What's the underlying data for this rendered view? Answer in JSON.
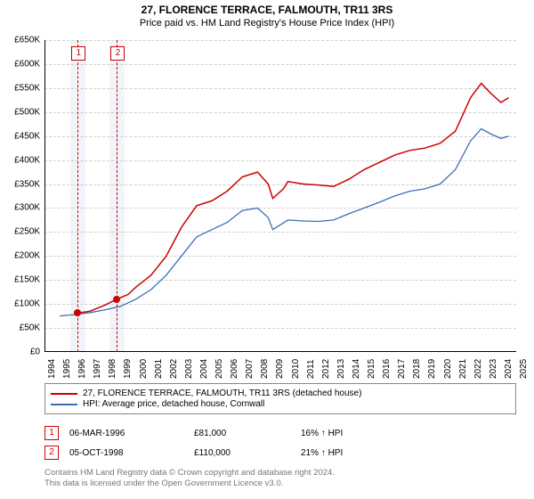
{
  "title": {
    "line1": "27, FLORENCE TERRACE, FALMOUTH, TR11 3RS",
    "line2": "Price paid vs. HM Land Registry's House Price Index (HPI)"
  },
  "chart": {
    "type": "line",
    "x_start": 1994,
    "x_end": 2025,
    "xtick_step": 1,
    "ylim": [
      0,
      650000
    ],
    "ytick_step": 50000,
    "ytick_labels": [
      "£0",
      "£50K",
      "£100K",
      "£150K",
      "£200K",
      "£250K",
      "£300K",
      "£350K",
      "£400K",
      "£450K",
      "£500K",
      "£550K",
      "£600K",
      "£650K"
    ],
    "grid_color": "#d0d0d0",
    "background_color": "#ffffff",
    "marker_band_color": "#eef2f7",
    "series": [
      {
        "id": "subject",
        "label": "27, FLORENCE TERRACE, FALMOUTH, TR11 3RS (detached house)",
        "color": "#cc0000",
        "line_width": 1.5,
        "data": [
          [
            1996.18,
            81000
          ],
          [
            1997.0,
            85000
          ],
          [
            1998.0,
            98000
          ],
          [
            1998.76,
            110000
          ],
          [
            1999.5,
            120000
          ],
          [
            2000.0,
            135000
          ],
          [
            2001.0,
            160000
          ],
          [
            2002.0,
            200000
          ],
          [
            2003.0,
            260000
          ],
          [
            2004.0,
            305000
          ],
          [
            2005.0,
            315000
          ],
          [
            2006.0,
            335000
          ],
          [
            2007.0,
            365000
          ],
          [
            2008.0,
            375000
          ],
          [
            2008.7,
            350000
          ],
          [
            2009.0,
            320000
          ],
          [
            2009.7,
            340000
          ],
          [
            2010.0,
            355000
          ],
          [
            2011.0,
            350000
          ],
          [
            2012.0,
            348000
          ],
          [
            2013.0,
            345000
          ],
          [
            2014.0,
            360000
          ],
          [
            2015.0,
            380000
          ],
          [
            2016.0,
            395000
          ],
          [
            2017.0,
            410000
          ],
          [
            2018.0,
            420000
          ],
          [
            2019.0,
            425000
          ],
          [
            2020.0,
            435000
          ],
          [
            2021.0,
            460000
          ],
          [
            2022.0,
            530000
          ],
          [
            2022.7,
            560000
          ],
          [
            2023.3,
            540000
          ],
          [
            2024.0,
            520000
          ],
          [
            2024.5,
            530000
          ]
        ]
      },
      {
        "id": "hpi",
        "label": "HPI: Average price, detached house, Cornwall",
        "color": "#3a6fb7",
        "line_width": 1.3,
        "data": [
          [
            1995.0,
            75000
          ],
          [
            1996.0,
            78000
          ],
          [
            1997.0,
            82000
          ],
          [
            1998.0,
            88000
          ],
          [
            1999.0,
            95000
          ],
          [
            2000.0,
            110000
          ],
          [
            2001.0,
            130000
          ],
          [
            2002.0,
            160000
          ],
          [
            2003.0,
            200000
          ],
          [
            2004.0,
            240000
          ],
          [
            2005.0,
            255000
          ],
          [
            2006.0,
            270000
          ],
          [
            2007.0,
            295000
          ],
          [
            2008.0,
            300000
          ],
          [
            2008.7,
            280000
          ],
          [
            2009.0,
            255000
          ],
          [
            2010.0,
            275000
          ],
          [
            2011.0,
            273000
          ],
          [
            2012.0,
            272000
          ],
          [
            2013.0,
            275000
          ],
          [
            2014.0,
            288000
          ],
          [
            2015.0,
            300000
          ],
          [
            2016.0,
            312000
          ],
          [
            2017.0,
            325000
          ],
          [
            2018.0,
            335000
          ],
          [
            2019.0,
            340000
          ],
          [
            2020.0,
            350000
          ],
          [
            2021.0,
            380000
          ],
          [
            2022.0,
            440000
          ],
          [
            2022.7,
            465000
          ],
          [
            2023.3,
            455000
          ],
          [
            2024.0,
            445000
          ],
          [
            2024.5,
            450000
          ]
        ]
      }
    ],
    "markers": [
      {
        "n": "1",
        "x": 1996.18,
        "y": 81000
      },
      {
        "n": "2",
        "x": 1998.76,
        "y": 110000
      }
    ]
  },
  "legend": {
    "items": [
      {
        "color": "#cc0000",
        "text": "27, FLORENCE TERRACE, FALMOUTH, TR11 3RS (detached house)"
      },
      {
        "color": "#3a6fb7",
        "text": "HPI: Average price, detached house, Cornwall"
      }
    ]
  },
  "marker_table": {
    "rows": [
      {
        "n": "1",
        "date": "06-MAR-1996",
        "price": "£81,000",
        "hpi": "16% ↑ HPI"
      },
      {
        "n": "2",
        "date": "05-OCT-1998",
        "price": "£110,000",
        "hpi": "21% ↑ HPI"
      }
    ]
  },
  "footer": {
    "line1": "Contains HM Land Registry data © Crown copyright and database right 2024.",
    "line2": "This data is licensed under the Open Government Licence v3.0."
  }
}
